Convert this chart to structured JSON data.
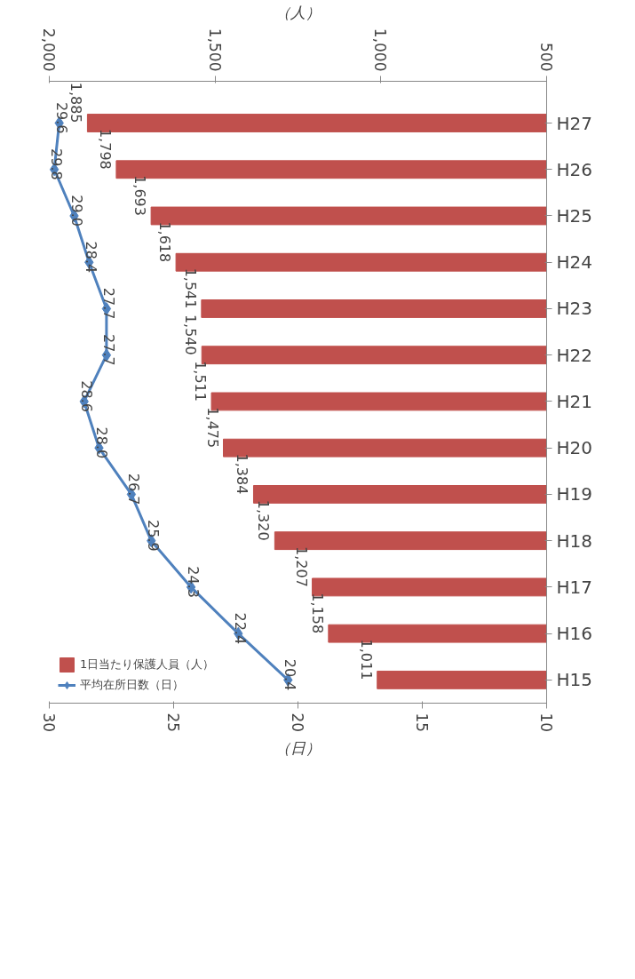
{
  "chart_data": {
    "type": "bar",
    "orientation": "horizontal",
    "categories": [
      "H27",
      "H26",
      "H25",
      "H24",
      "H23",
      "H22",
      "H21",
      "H20",
      "H19",
      "H18",
      "H17",
      "H16",
      "H15"
    ],
    "series": [
      {
        "name": "1日当たり保護人員（人）",
        "color": "#c0504d",
        "axis": "x2",
        "values": [
          1885,
          1798,
          1693,
          1618,
          1541,
          1540,
          1511,
          1475,
          1384,
          1320,
          1207,
          1158,
          1011
        ],
        "value_labels": [
          "1,885",
          "1,798",
          "1,693",
          "1,618",
          "1,541",
          "1,540",
          "1,511",
          "1,475",
          "1,384",
          "1,320",
          "1,207",
          "1,158",
          "1,011"
        ]
      },
      {
        "name": "平均在所日数（日）",
        "type": "line",
        "color": "#4f81bd",
        "marker": "diamond",
        "values": [
          29.6,
          29.8,
          29.0,
          28.4,
          27.7,
          27.7,
          28.6,
          28.0,
          26.7,
          25.9,
          24.3,
          22.4,
          20.4
        ],
        "value_labels": [
          "29.6",
          "29.8",
          "29.0",
          "28.4",
          "27.7",
          "27.7",
          "28.6",
          "28.0",
          "26.7",
          "25.9",
          "24.3",
          "22.4",
          "20.4"
        ]
      }
    ],
    "xlabel": "（日）",
    "x2label": "（人）",
    "xlim": [
      30,
      10
    ],
    "xticks": [
      30,
      25,
      20,
      15,
      10
    ],
    "x2lim": [
      2000,
      500
    ],
    "x2ticks": [
      {
        "value": 2000,
        "label": "2,000"
      },
      {
        "value": 1500,
        "label": "1,500"
      },
      {
        "value": 1000,
        "label": "1,000"
      },
      500
    ],
    "data_labels": true,
    "grid": false,
    "legend": "bottom left"
  }
}
